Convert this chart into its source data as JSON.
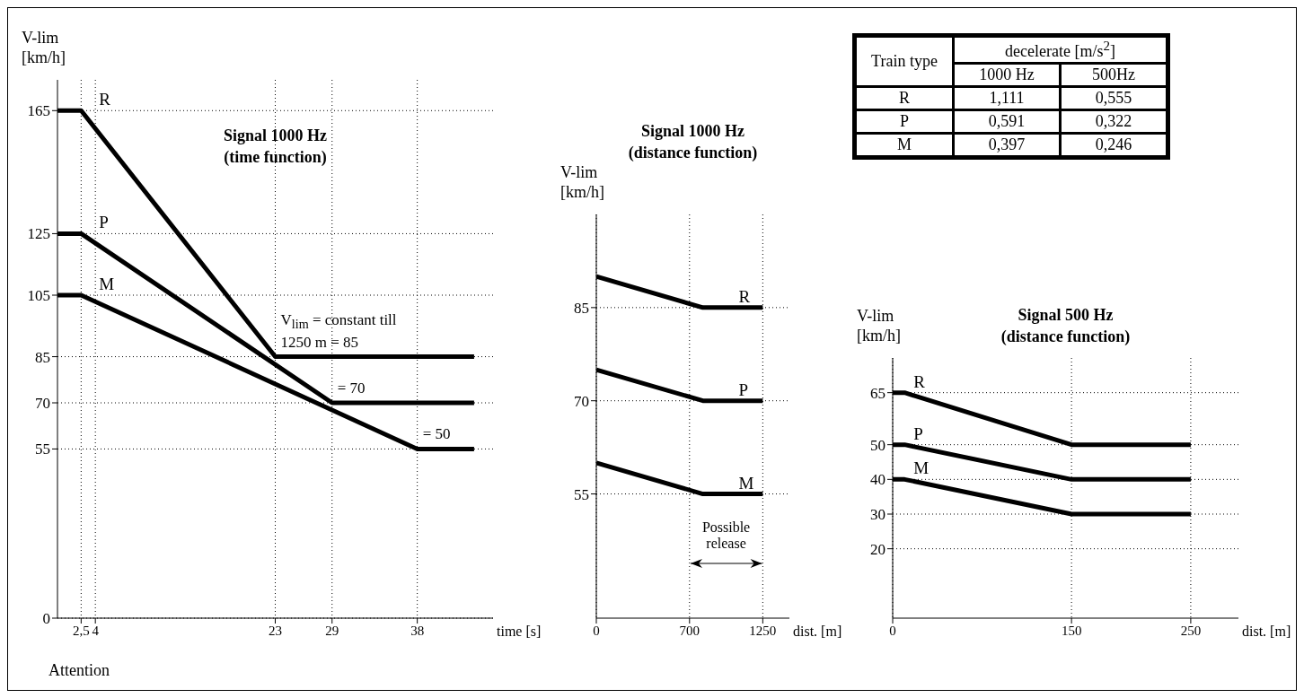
{
  "chart_data": [
    {
      "type": "line",
      "title": "Signal 1000 Hz\n(time function)",
      "xlabel": "time [s]",
      "ylabel": "V-lim [km/h]",
      "xlim": [
        0,
        46
      ],
      "ylim": [
        0,
        175
      ],
      "xticks": [
        {
          "value": 2.5,
          "label": "2,5"
        },
        4,
        23,
        29,
        38
      ],
      "yticks": [
        0,
        55,
        70,
        85,
        105,
        125,
        165
      ],
      "grid": true,
      "series": [
        {
          "name": "R",
          "color": "#000000",
          "x": [
            0,
            2.5,
            23,
            44
          ],
          "values": [
            165,
            165,
            85,
            85
          ]
        },
        {
          "name": "P",
          "color": "#000000",
          "x": [
            0,
            2.5,
            29,
            44
          ],
          "values": [
            125,
            125,
            70,
            70
          ]
        },
        {
          "name": "M",
          "color": "#000000",
          "x": [
            0,
            2.5,
            38,
            44
          ],
          "values": [
            105,
            105,
            55,
            55
          ]
        }
      ],
      "annotations": [
        "V$_{lim}$ = constant till 1250 m = 85",
        "= 70",
        "= 50",
        "Attention"
      ]
    },
    {
      "type": "line",
      "title": "Signal 1000 Hz\n(distance function)",
      "xlabel": "dist. [m]",
      "ylabel": "V-lim [km/h]",
      "xlim": [
        0,
        1450
      ],
      "ylim": [
        35,
        100
      ],
      "xticks": [
        0,
        700,
        1250
      ],
      "yticks": [
        55,
        70,
        85
      ],
      "grid": true,
      "series": [
        {
          "name": "R",
          "color": "#000000",
          "x": [
            0,
            800,
            1250
          ],
          "values": [
            90,
            85,
            85
          ]
        },
        {
          "name": "P",
          "color": "#000000",
          "x": [
            0,
            800,
            1250
          ],
          "values": [
            75,
            70,
            70
          ]
        },
        {
          "name": "M",
          "color": "#000000",
          "x": [
            0,
            800,
            1250
          ],
          "values": [
            60,
            55,
            55
          ]
        }
      ],
      "annotations": [
        "Possible release"
      ]
    },
    {
      "type": "line",
      "title": "Signal 500 Hz\n(distance function)",
      "xlabel": "dist. [m]",
      "ylabel": "V-lim [km/h]",
      "xlim": [
        0,
        290
      ],
      "ylim": [
        0,
        75
      ],
      "xticks": [
        0,
        150,
        250
      ],
      "yticks": [
        20,
        30,
        40,
        50,
        65
      ],
      "grid": true,
      "series": [
        {
          "name": "R",
          "color": "#000000",
          "x": [
            0,
            10,
            150,
            250
          ],
          "values": [
            65,
            65,
            50,
            50
          ]
        },
        {
          "name": "P",
          "color": "#000000",
          "x": [
            0,
            10,
            150,
            250
          ],
          "values": [
            50,
            50,
            40,
            40
          ]
        },
        {
          "name": "M",
          "color": "#000000",
          "x": [
            0,
            10,
            150,
            250
          ],
          "values": [
            40,
            40,
            30,
            30
          ]
        }
      ]
    },
    {
      "type": "other",
      "annotations": [
        "Train type",
        "decelerate [m/s$^{2}$]",
        "1000 Hz",
        "500Hz",
        "R",
        "1,111",
        "0,555",
        "P",
        "0,591",
        "0,322",
        "M",
        "0,397",
        "0,246"
      ]
    }
  ]
}
